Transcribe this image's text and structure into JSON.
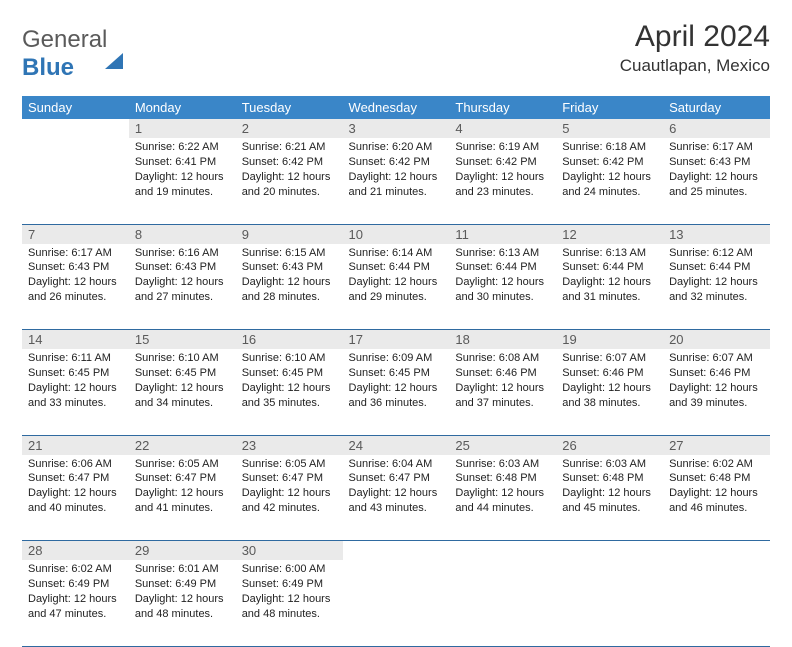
{
  "logo": {
    "word1": "General",
    "word2": "Blue"
  },
  "title": "April 2024",
  "location": "Cuautlapan, Mexico",
  "dayHeaders": [
    "Sunday",
    "Monday",
    "Tuesday",
    "Wednesday",
    "Thursday",
    "Friday",
    "Saturday"
  ],
  "colors": {
    "header_bg": "#3a86c8",
    "header_fg": "#ffffff",
    "daynum_bg": "#eaeaea",
    "border": "#2f6aa0",
    "brand_blue": "#2f75b5",
    "text": "#212121"
  },
  "weeks": [
    [
      null,
      {
        "n": "1",
        "sr": "Sunrise: 6:22 AM",
        "ss": "Sunset: 6:41 PM",
        "dl": "Daylight: 12 hours and 19 minutes."
      },
      {
        "n": "2",
        "sr": "Sunrise: 6:21 AM",
        "ss": "Sunset: 6:42 PM",
        "dl": "Daylight: 12 hours and 20 minutes."
      },
      {
        "n": "3",
        "sr": "Sunrise: 6:20 AM",
        "ss": "Sunset: 6:42 PM",
        "dl": "Daylight: 12 hours and 21 minutes."
      },
      {
        "n": "4",
        "sr": "Sunrise: 6:19 AM",
        "ss": "Sunset: 6:42 PM",
        "dl": "Daylight: 12 hours and 23 minutes."
      },
      {
        "n": "5",
        "sr": "Sunrise: 6:18 AM",
        "ss": "Sunset: 6:42 PM",
        "dl": "Daylight: 12 hours and 24 minutes."
      },
      {
        "n": "6",
        "sr": "Sunrise: 6:17 AM",
        "ss": "Sunset: 6:43 PM",
        "dl": "Daylight: 12 hours and 25 minutes."
      }
    ],
    [
      {
        "n": "7",
        "sr": "Sunrise: 6:17 AM",
        "ss": "Sunset: 6:43 PM",
        "dl": "Daylight: 12 hours and 26 minutes."
      },
      {
        "n": "8",
        "sr": "Sunrise: 6:16 AM",
        "ss": "Sunset: 6:43 PM",
        "dl": "Daylight: 12 hours and 27 minutes."
      },
      {
        "n": "9",
        "sr": "Sunrise: 6:15 AM",
        "ss": "Sunset: 6:43 PM",
        "dl": "Daylight: 12 hours and 28 minutes."
      },
      {
        "n": "10",
        "sr": "Sunrise: 6:14 AM",
        "ss": "Sunset: 6:44 PM",
        "dl": "Daylight: 12 hours and 29 minutes."
      },
      {
        "n": "11",
        "sr": "Sunrise: 6:13 AM",
        "ss": "Sunset: 6:44 PM",
        "dl": "Daylight: 12 hours and 30 minutes."
      },
      {
        "n": "12",
        "sr": "Sunrise: 6:13 AM",
        "ss": "Sunset: 6:44 PM",
        "dl": "Daylight: 12 hours and 31 minutes."
      },
      {
        "n": "13",
        "sr": "Sunrise: 6:12 AM",
        "ss": "Sunset: 6:44 PM",
        "dl": "Daylight: 12 hours and 32 minutes."
      }
    ],
    [
      {
        "n": "14",
        "sr": "Sunrise: 6:11 AM",
        "ss": "Sunset: 6:45 PM",
        "dl": "Daylight: 12 hours and 33 minutes."
      },
      {
        "n": "15",
        "sr": "Sunrise: 6:10 AM",
        "ss": "Sunset: 6:45 PM",
        "dl": "Daylight: 12 hours and 34 minutes."
      },
      {
        "n": "16",
        "sr": "Sunrise: 6:10 AM",
        "ss": "Sunset: 6:45 PM",
        "dl": "Daylight: 12 hours and 35 minutes."
      },
      {
        "n": "17",
        "sr": "Sunrise: 6:09 AM",
        "ss": "Sunset: 6:45 PM",
        "dl": "Daylight: 12 hours and 36 minutes."
      },
      {
        "n": "18",
        "sr": "Sunrise: 6:08 AM",
        "ss": "Sunset: 6:46 PM",
        "dl": "Daylight: 12 hours and 37 minutes."
      },
      {
        "n": "19",
        "sr": "Sunrise: 6:07 AM",
        "ss": "Sunset: 6:46 PM",
        "dl": "Daylight: 12 hours and 38 minutes."
      },
      {
        "n": "20",
        "sr": "Sunrise: 6:07 AM",
        "ss": "Sunset: 6:46 PM",
        "dl": "Daylight: 12 hours and 39 minutes."
      }
    ],
    [
      {
        "n": "21",
        "sr": "Sunrise: 6:06 AM",
        "ss": "Sunset: 6:47 PM",
        "dl": "Daylight: 12 hours and 40 minutes."
      },
      {
        "n": "22",
        "sr": "Sunrise: 6:05 AM",
        "ss": "Sunset: 6:47 PM",
        "dl": "Daylight: 12 hours and 41 minutes."
      },
      {
        "n": "23",
        "sr": "Sunrise: 6:05 AM",
        "ss": "Sunset: 6:47 PM",
        "dl": "Daylight: 12 hours and 42 minutes."
      },
      {
        "n": "24",
        "sr": "Sunrise: 6:04 AM",
        "ss": "Sunset: 6:47 PM",
        "dl": "Daylight: 12 hours and 43 minutes."
      },
      {
        "n": "25",
        "sr": "Sunrise: 6:03 AM",
        "ss": "Sunset: 6:48 PM",
        "dl": "Daylight: 12 hours and 44 minutes."
      },
      {
        "n": "26",
        "sr": "Sunrise: 6:03 AM",
        "ss": "Sunset: 6:48 PM",
        "dl": "Daylight: 12 hours and 45 minutes."
      },
      {
        "n": "27",
        "sr": "Sunrise: 6:02 AM",
        "ss": "Sunset: 6:48 PM",
        "dl": "Daylight: 12 hours and 46 minutes."
      }
    ],
    [
      {
        "n": "28",
        "sr": "Sunrise: 6:02 AM",
        "ss": "Sunset: 6:49 PM",
        "dl": "Daylight: 12 hours and 47 minutes."
      },
      {
        "n": "29",
        "sr": "Sunrise: 6:01 AM",
        "ss": "Sunset: 6:49 PM",
        "dl": "Daylight: 12 hours and 48 minutes."
      },
      {
        "n": "30",
        "sr": "Sunrise: 6:00 AM",
        "ss": "Sunset: 6:49 PM",
        "dl": "Daylight: 12 hours and 48 minutes."
      },
      null,
      null,
      null,
      null
    ]
  ]
}
